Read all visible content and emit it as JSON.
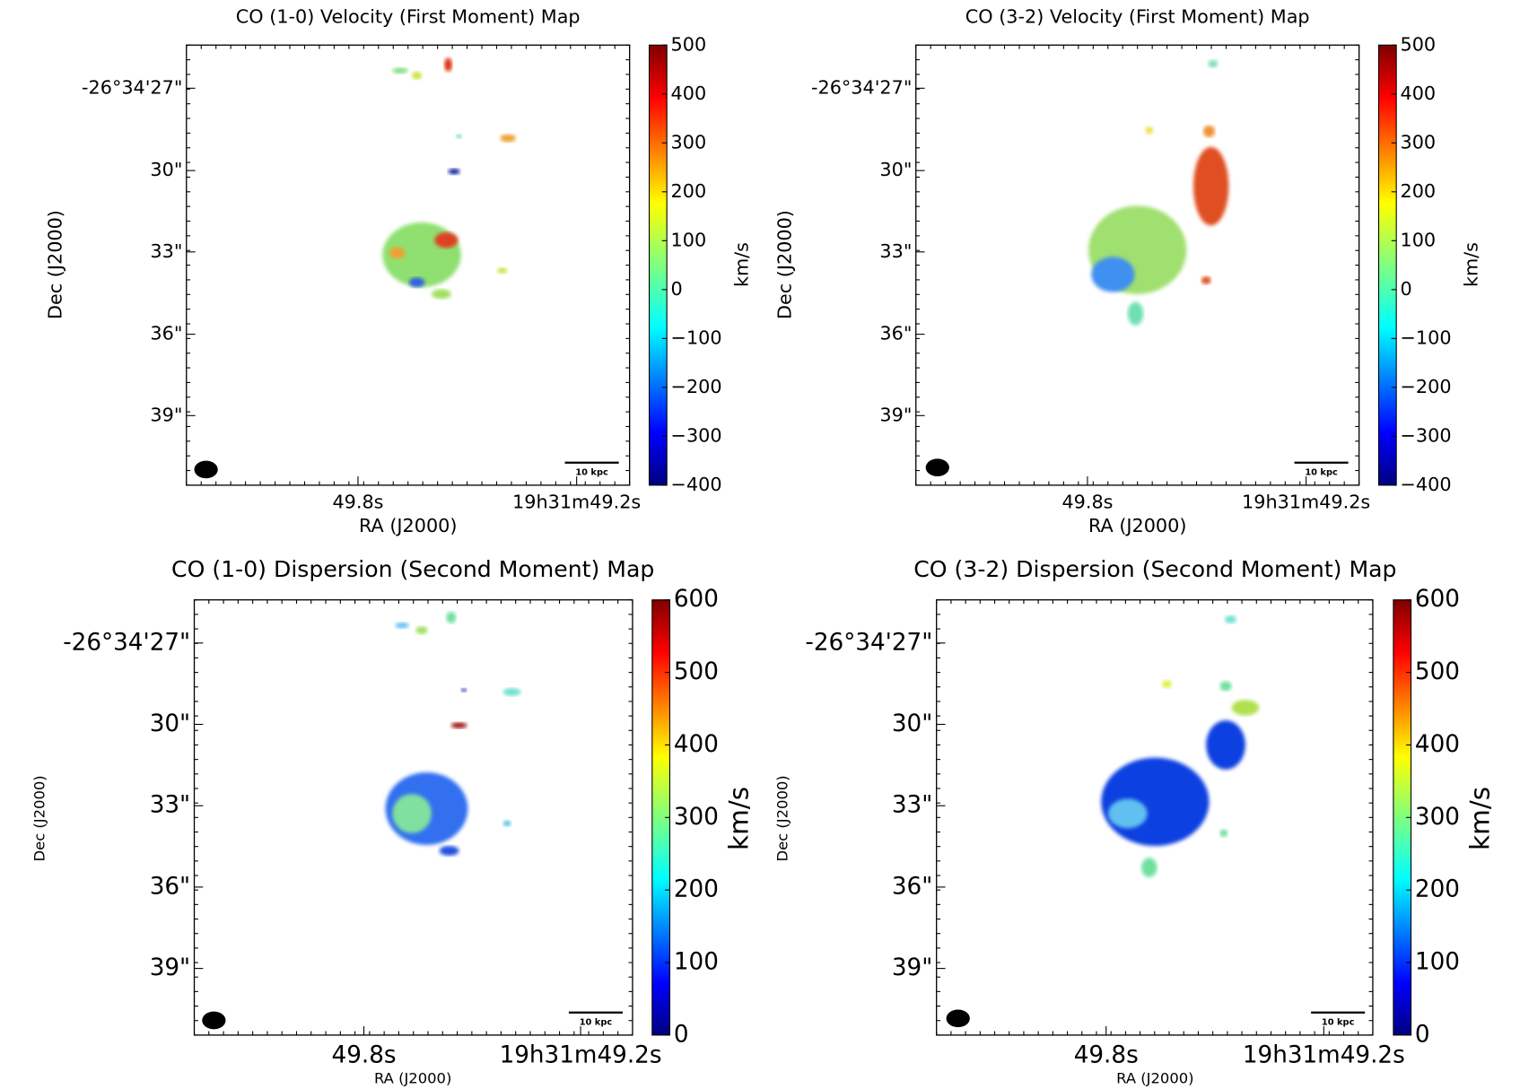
{
  "panels": [
    {
      "title": "CO (1-0) Velocity (First Moment) Map",
      "xlabel": "RA (J2000)",
      "ylabel": "Dec (J2000)",
      "xticks": [
        "49.8s",
        "19h31m49.2s"
      ],
      "yticks": [
        "-26°34'27\"",
        "30\"",
        "33\"",
        "36\"",
        "39\""
      ],
      "scalebar": "10 kpc",
      "colorbar": {
        "label": "km/s",
        "lim": [
          -400,
          500
        ],
        "ticks": [
          500,
          400,
          300,
          200,
          100,
          0,
          {
            "value": -100,
            "label": "−100"
          },
          {
            "value": -200,
            "label": "−200"
          },
          {
            "value": -300,
            "label": "−300"
          },
          {
            "value": -400,
            "label": "−400"
          }
        ]
      }
    },
    {
      "title": "CO (3-2) Velocity (First Moment) Map",
      "xlabel": "RA (J2000)",
      "ylabel": "Dec (J2000)",
      "xticks": [
        "49.8s",
        "19h31m49.2s"
      ],
      "yticks": [
        "-26°34'27\"",
        "30\"",
        "33\"",
        "36\"",
        "39\""
      ],
      "scalebar": "10 kpc",
      "colorbar": {
        "label": "km/s",
        "lim": [
          -400,
          500
        ],
        "ticks": [
          500,
          400,
          300,
          200,
          100,
          0,
          {
            "value": -100,
            "label": "−100"
          },
          {
            "value": -200,
            "label": "−200"
          },
          {
            "value": -300,
            "label": "−300"
          },
          {
            "value": -400,
            "label": "−400"
          }
        ]
      }
    },
    {
      "title": "CO (1-0) Dispersion (Second Moment) Map",
      "xlabel": "RA (J2000)",
      "ylabel": "Dec (J2000)",
      "xticks": [
        "49.8s",
        "19h31m49.2s"
      ],
      "yticks": [
        "-26°34'27\"",
        "30\"",
        "33\"",
        "36\"",
        "39\""
      ],
      "scalebar": "10 kpc",
      "colorbar": {
        "label": "km/s",
        "lim": [
          0,
          600
        ],
        "ticks": [
          600,
          500,
          400,
          300,
          200,
          100,
          0
        ]
      }
    },
    {
      "title": "CO (3-2) Dispersion (Second Moment) Map",
      "xlabel": "RA (J2000)",
      "ylabel": "Dec (J2000)",
      "xticks": [
        "49.8s",
        "19h31m49.2s"
      ],
      "yticks": [
        "-26°34'27\"",
        "30\"",
        "33\"",
        "36\"",
        "39\""
      ],
      "scalebar": "10 kpc",
      "colorbar": {
        "label": "km/s",
        "lim": [
          0,
          600
        ],
        "ticks": [
          600,
          500,
          400,
          300,
          200,
          100,
          0
        ]
      }
    }
  ]
}
